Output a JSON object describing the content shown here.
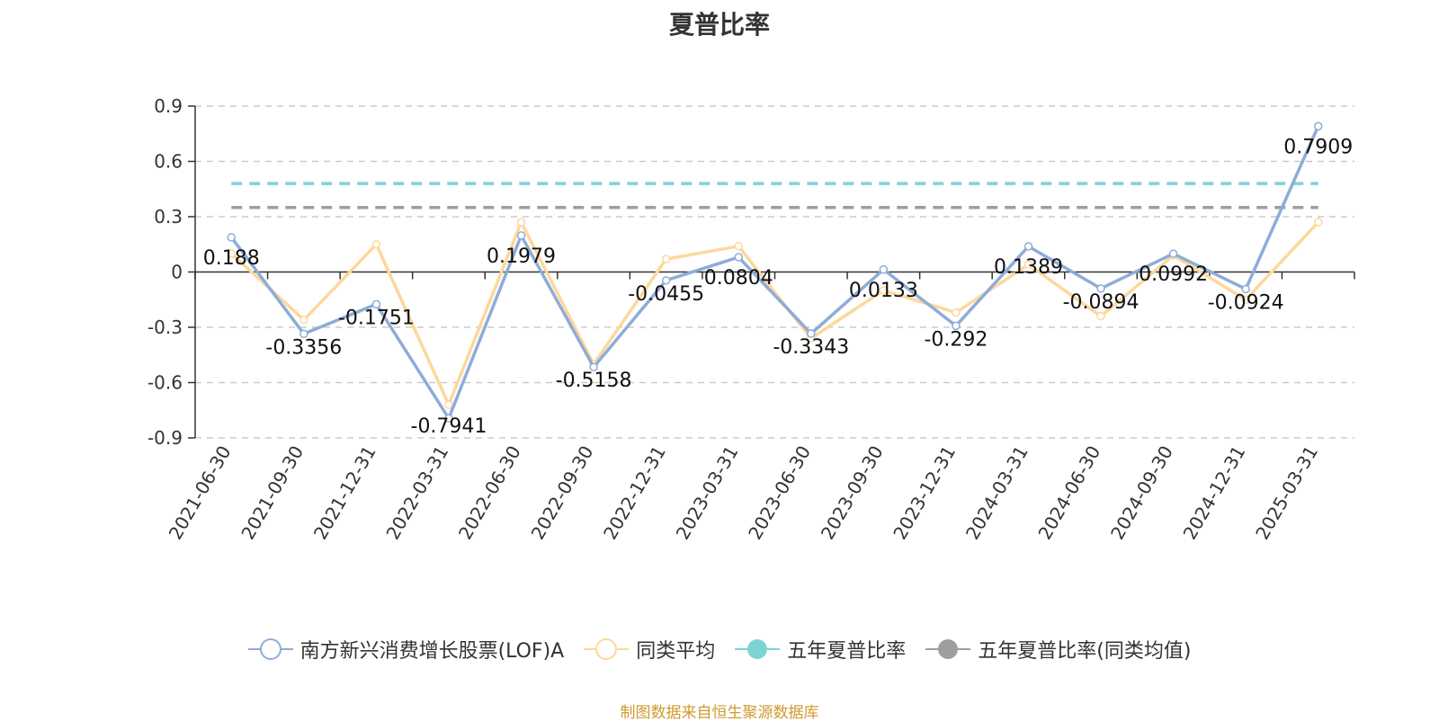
{
  "chart_data": {
    "type": "line",
    "title": "夏普比率",
    "categories": [
      "2021-06-30",
      "2021-09-30",
      "2021-12-31",
      "2022-03-31",
      "2022-06-30",
      "2022-09-30",
      "2022-12-31",
      "2023-03-31",
      "2023-06-30",
      "2023-09-30",
      "2023-12-31",
      "2024-03-31",
      "2024-06-30",
      "2024-09-30",
      "2024-12-31",
      "2025-03-31"
    ],
    "y_ticks": [
      "0.9",
      "0.6",
      "0.3",
      "0",
      "-0.3",
      "-0.6",
      "-0.9"
    ],
    "ylim": [
      -0.9,
      0.9
    ],
    "grid": true,
    "legend_position": "bottom",
    "series": [
      {
        "name": "南方新兴消费增长股票(LOF)A",
        "color": "#8eacd8",
        "values": [
          0.188,
          -0.3356,
          -0.1751,
          -0.7941,
          0.1979,
          -0.5158,
          -0.0455,
          0.0804,
          -0.3343,
          0.0133,
          -0.292,
          0.1389,
          -0.0894,
          0.0992,
          -0.0924,
          0.7909
        ],
        "labels": [
          "0.188",
          "-0.3356",
          "-0.1751",
          "-0.7941",
          "0.1979",
          "-0.5158",
          "-0.0455",
          "0.0804",
          "-0.3343",
          "0.0133",
          "-0.292",
          "0.1389",
          "-0.0894",
          "0.0992",
          "-0.0924",
          "0.7909"
        ]
      },
      {
        "name": "同类平均",
        "color": "#fdd89b",
        "values": [
          0.1,
          -0.26,
          0.15,
          -0.72,
          0.27,
          -0.5,
          0.07,
          0.14,
          -0.36,
          -0.1,
          -0.22,
          0.04,
          -0.24,
          0.09,
          -0.15,
          0.27
        ]
      },
      {
        "name": "五年夏普比率",
        "color": "#7dd3d4",
        "constant": 0.48
      },
      {
        "name": "五年夏普比率(同类均值)",
        "color": "#9e9e9e",
        "constant": 0.35
      }
    ]
  },
  "source_note": "制图数据来自恒生聚源数据库"
}
